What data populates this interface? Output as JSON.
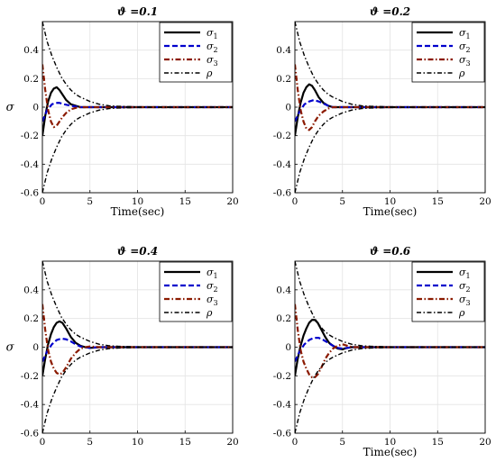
{
  "chart_data": [
    {
      "type": "line",
      "title": "ϑ =0.1",
      "xlabel": "Time(sec)",
      "ylabel": "σ",
      "xlim": [
        0,
        20
      ],
      "ylim": [
        -0.6,
        0.6
      ],
      "xticks": [
        "0",
        "5",
        "10",
        "15",
        "20"
      ],
      "yticks": [
        "-0.6",
        "-0.4",
        "-0.2",
        "0",
        "0.2",
        "0.4"
      ],
      "grid": true,
      "legend_position": "top-right",
      "series": [
        {
          "name": "σ",
          "sub": "1",
          "color": "#000000",
          "dash": "solid",
          "x": [
            0,
            0.3,
            0.6,
            0.9,
            1.2,
            1.5,
            1.8,
            2.1,
            2.5,
            3,
            3.5,
            4,
            5,
            6,
            8,
            20
          ],
          "y": [
            -0.2,
            -0.06,
            0.04,
            0.1,
            0.13,
            0.14,
            0.12,
            0.09,
            0.05,
            0.02,
            0.01,
            0.0,
            0.0,
            0.0,
            0.0,
            0.0
          ]
        },
        {
          "name": "σ",
          "sub": "2",
          "color": "#0000cc",
          "dash": "dashed",
          "x": [
            0,
            0.5,
            1,
            1.4,
            1.8,
            2.3,
            3,
            3.5,
            4,
            5,
            6,
            20
          ],
          "y": [
            -0.1,
            -0.02,
            0.02,
            0.03,
            0.03,
            0.02,
            0.01,
            0.005,
            0.0,
            0.0,
            0.0,
            0.0
          ]
        },
        {
          "name": "σ",
          "sub": "3",
          "color": "#8b1a00",
          "dash": "dashdot",
          "x": [
            0,
            0.3,
            0.6,
            0.9,
            1.2,
            1.5,
            1.8,
            2.1,
            2.5,
            3,
            3.5,
            4,
            5,
            20
          ],
          "y": [
            0.3,
            0.12,
            -0.02,
            -0.1,
            -0.14,
            -0.13,
            -0.1,
            -0.07,
            -0.04,
            -0.015,
            -0.005,
            0.0,
            0.0,
            0.0
          ]
        },
        {
          "name": "ρ",
          "sub": "",
          "color": "#000000",
          "dash": "dashdotthin",
          "x": [
            0,
            0.5,
            1,
            1.5,
            2,
            2.5,
            3,
            3.5,
            4,
            5,
            6,
            7,
            8,
            10,
            15,
            20
          ],
          "y": [
            0.6,
            0.46,
            0.36,
            0.28,
            0.21,
            0.16,
            0.12,
            0.09,
            0.07,
            0.04,
            0.02,
            0.01,
            0.006,
            0.002,
            0.0,
            0.0
          ]
        },
        {
          "name": "",
          "sub": "",
          "color": "#000000",
          "dash": "dashdotthin",
          "x": [
            0,
            0.5,
            1,
            1.5,
            2,
            2.5,
            3,
            3.5,
            4,
            5,
            6,
            7,
            8,
            10,
            15,
            20
          ],
          "y": [
            -0.6,
            -0.46,
            -0.36,
            -0.28,
            -0.21,
            -0.16,
            -0.12,
            -0.09,
            -0.07,
            -0.04,
            -0.02,
            -0.01,
            -0.006,
            -0.002,
            0.0,
            0.0
          ]
        }
      ]
    },
    {
      "type": "line",
      "title": "ϑ =0.2",
      "xlabel": "Time(sec)",
      "ylabel": "",
      "xlim": [
        0,
        20
      ],
      "ylim": [
        -0.6,
        0.6
      ],
      "xticks": [
        "0",
        "5",
        "10",
        "15",
        "20"
      ],
      "yticks": [
        "-0.6",
        "-0.4",
        "-0.2",
        "0",
        "0.2",
        "0.4"
      ],
      "grid": true,
      "legend_position": "top-right",
      "series": [
        {
          "name": "σ",
          "sub": "1",
          "color": "#000000",
          "dash": "solid",
          "x": [
            0,
            0.3,
            0.6,
            0.9,
            1.2,
            1.5,
            1.8,
            2.1,
            2.5,
            3,
            3.5,
            4,
            5,
            6,
            8,
            20
          ],
          "y": [
            -0.2,
            -0.07,
            0.03,
            0.1,
            0.14,
            0.16,
            0.15,
            0.12,
            0.07,
            0.03,
            0.01,
            0.0,
            0.0,
            0.0,
            0.0,
            0.0
          ]
        },
        {
          "name": "σ",
          "sub": "2",
          "color": "#0000cc",
          "dash": "dashed",
          "x": [
            0,
            0.5,
            1,
            1.5,
            2,
            2.5,
            3,
            3.5,
            4,
            5,
            6,
            20
          ],
          "y": [
            -0.1,
            -0.03,
            0.02,
            0.04,
            0.05,
            0.04,
            0.025,
            0.01,
            0.0,
            0.0,
            0.0,
            0.0
          ]
        },
        {
          "name": "σ",
          "sub": "3",
          "color": "#8b1a00",
          "dash": "dashdot",
          "x": [
            0,
            0.3,
            0.6,
            0.9,
            1.2,
            1.5,
            1.8,
            2.1,
            2.5,
            3,
            3.5,
            4,
            5,
            20
          ],
          "y": [
            0.3,
            0.12,
            -0.02,
            -0.1,
            -0.15,
            -0.16,
            -0.14,
            -0.1,
            -0.06,
            -0.03,
            -0.01,
            0.0,
            0.0,
            0.0
          ]
        },
        {
          "name": "ρ",
          "sub": "",
          "color": "#000000",
          "dash": "dashdotthin",
          "x": [
            0,
            0.5,
            1,
            1.5,
            2,
            2.5,
            3,
            3.5,
            4,
            5,
            6,
            7,
            8,
            10,
            15,
            20
          ],
          "y": [
            0.6,
            0.46,
            0.36,
            0.28,
            0.21,
            0.16,
            0.12,
            0.09,
            0.07,
            0.04,
            0.02,
            0.01,
            0.006,
            0.002,
            0.0,
            0.0
          ]
        },
        {
          "name": "",
          "sub": "",
          "color": "#000000",
          "dash": "dashdotthin",
          "x": [
            0,
            0.5,
            1,
            1.5,
            2,
            2.5,
            3,
            3.5,
            4,
            5,
            6,
            7,
            8,
            10,
            15,
            20
          ],
          "y": [
            -0.6,
            -0.46,
            -0.36,
            -0.28,
            -0.21,
            -0.16,
            -0.12,
            -0.09,
            -0.07,
            -0.04,
            -0.02,
            -0.01,
            -0.006,
            -0.002,
            0.0,
            0.0
          ]
        }
      ]
    },
    {
      "type": "line",
      "title": "ϑ =0.4",
      "xlabel": "",
      "ylabel": "σ",
      "xlim": [
        0,
        20
      ],
      "ylim": [
        -0.6,
        0.6
      ],
      "xticks": [
        "0",
        "5",
        "10",
        "15",
        "20"
      ],
      "yticks": [
        "-0.6",
        "-0.4",
        "-0.2",
        "0",
        "0.2",
        "0.4"
      ],
      "grid": true,
      "legend_position": "top-right",
      "series": [
        {
          "name": "σ",
          "sub": "1",
          "color": "#000000",
          "dash": "solid",
          "x": [
            0,
            0.3,
            0.6,
            0.9,
            1.2,
            1.5,
            1.8,
            2.1,
            2.5,
            3,
            3.5,
            4,
            4.5,
            5,
            6,
            8,
            20
          ],
          "y": [
            -0.2,
            -0.08,
            0.02,
            0.09,
            0.14,
            0.17,
            0.18,
            0.17,
            0.13,
            0.07,
            0.03,
            0.01,
            0.0,
            -0.005,
            0.0,
            0.0,
            0.0
          ]
        },
        {
          "name": "σ",
          "sub": "2",
          "color": "#0000cc",
          "dash": "dashed",
          "x": [
            0,
            0.5,
            1,
            1.5,
            2,
            2.5,
            3,
            3.5,
            4,
            5,
            6,
            20
          ],
          "y": [
            -0.1,
            -0.03,
            0.02,
            0.05,
            0.06,
            0.055,
            0.04,
            0.02,
            0.005,
            -0.005,
            0.0,
            0.0
          ]
        },
        {
          "name": "σ",
          "sub": "3",
          "color": "#8b1a00",
          "dash": "dashdot",
          "x": [
            0,
            0.3,
            0.6,
            0.9,
            1.2,
            1.5,
            1.8,
            2.1,
            2.5,
            3,
            3.5,
            4,
            4.5,
            5,
            6,
            20
          ],
          "y": [
            0.3,
            0.12,
            -0.02,
            -0.1,
            -0.15,
            -0.18,
            -0.19,
            -0.18,
            -0.14,
            -0.08,
            -0.04,
            -0.01,
            0.0,
            0.005,
            0.0,
            0.0
          ]
        },
        {
          "name": "ρ",
          "sub": "",
          "color": "#000000",
          "dash": "dashdotthin",
          "x": [
            0,
            0.5,
            1,
            1.5,
            2,
            2.5,
            3,
            3.5,
            4,
            5,
            6,
            7,
            8,
            10,
            15,
            20
          ],
          "y": [
            0.6,
            0.46,
            0.36,
            0.28,
            0.21,
            0.16,
            0.12,
            0.09,
            0.07,
            0.04,
            0.02,
            0.01,
            0.006,
            0.002,
            0.0,
            0.0
          ]
        },
        {
          "name": "",
          "sub": "",
          "color": "#000000",
          "dash": "dashdotthin",
          "x": [
            0,
            0.5,
            1,
            1.5,
            2,
            2.5,
            3,
            3.5,
            4,
            5,
            6,
            7,
            8,
            10,
            15,
            20
          ],
          "y": [
            -0.6,
            -0.46,
            -0.36,
            -0.28,
            -0.21,
            -0.16,
            -0.12,
            -0.09,
            -0.07,
            -0.04,
            -0.02,
            -0.01,
            -0.006,
            -0.002,
            0.0,
            0.0
          ]
        }
      ]
    },
    {
      "type": "line",
      "title": "ϑ =0.6",
      "xlabel": "Time(sec)",
      "ylabel": "",
      "xlim": [
        0,
        20
      ],
      "ylim": [
        -0.6,
        0.6
      ],
      "xticks": [
        "0",
        "5",
        "10",
        "15",
        "20"
      ],
      "yticks": [
        "-0.6",
        "-0.4",
        "-0.2",
        "0",
        "0.2",
        "0.4"
      ],
      "grid": true,
      "legend_position": "top-right",
      "series": [
        {
          "name": "σ",
          "sub": "1",
          "color": "#000000",
          "dash": "solid",
          "x": [
            0,
            0.3,
            0.6,
            0.9,
            1.2,
            1.5,
            1.8,
            2.1,
            2.4,
            2.8,
            3.2,
            3.6,
            4,
            4.5,
            5,
            5.5,
            6,
            7,
            20
          ],
          "y": [
            -0.2,
            -0.08,
            0.01,
            0.08,
            0.13,
            0.17,
            0.19,
            0.19,
            0.17,
            0.12,
            0.07,
            0.03,
            0.01,
            -0.01,
            -0.015,
            -0.005,
            0.0,
            0.0,
            0.0
          ]
        },
        {
          "name": "σ",
          "sub": "2",
          "color": "#0000cc",
          "dash": "dashed",
          "x": [
            0,
            0.5,
            1,
            1.5,
            2,
            2.5,
            3,
            3.5,
            4,
            4.5,
            5,
            6,
            7,
            20
          ],
          "y": [
            -0.1,
            -0.03,
            0.02,
            0.05,
            0.065,
            0.065,
            0.05,
            0.03,
            0.01,
            -0.005,
            -0.01,
            0.0,
            0.0,
            0.0
          ]
        },
        {
          "name": "σ",
          "sub": "3",
          "color": "#8b1a00",
          "dash": "dashdot",
          "x": [
            0,
            0.3,
            0.6,
            0.9,
            1.2,
            1.5,
            1.8,
            2.1,
            2.4,
            2.8,
            3.2,
            3.6,
            4,
            4.5,
            5,
            5.5,
            6,
            7,
            20
          ],
          "y": [
            0.3,
            0.12,
            -0.02,
            -0.1,
            -0.15,
            -0.19,
            -0.21,
            -0.21,
            -0.19,
            -0.14,
            -0.08,
            -0.04,
            -0.01,
            0.01,
            0.02,
            0.01,
            0.0,
            0.0,
            0.0
          ]
        },
        {
          "name": "ρ",
          "sub": "",
          "color": "#000000",
          "dash": "dashdotthin",
          "x": [
            0,
            0.5,
            1,
            1.5,
            2,
            2.5,
            3,
            3.5,
            4,
            5,
            6,
            7,
            8,
            10,
            15,
            20
          ],
          "y": [
            0.6,
            0.46,
            0.36,
            0.28,
            0.21,
            0.16,
            0.12,
            0.09,
            0.07,
            0.04,
            0.02,
            0.01,
            0.006,
            0.002,
            0.0,
            0.0
          ]
        },
        {
          "name": "",
          "sub": "",
          "color": "#000000",
          "dash": "dashdotthin",
          "x": [
            0,
            0.5,
            1,
            1.5,
            2,
            2.5,
            3,
            3.5,
            4,
            5,
            6,
            7,
            8,
            10,
            15,
            20
          ],
          "y": [
            -0.6,
            -0.46,
            -0.36,
            -0.28,
            -0.21,
            -0.16,
            -0.12,
            -0.09,
            -0.07,
            -0.04,
            -0.02,
            -0.01,
            -0.006,
            -0.002,
            0.0,
            0.0
          ]
        }
      ]
    }
  ]
}
